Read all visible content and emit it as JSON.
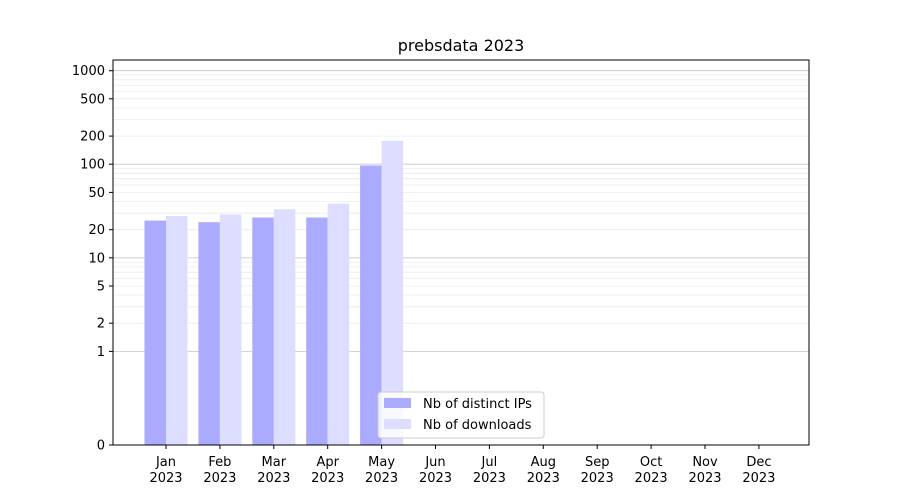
{
  "chart_data": {
    "type": "bar",
    "title": "prebsdata 2023",
    "xlabel": "",
    "ylabel": "",
    "y_scale": "symlog",
    "y_ticks": [
      0,
      1,
      2,
      5,
      10,
      20,
      50,
      100,
      200,
      500,
      1000
    ],
    "ylim": [
      0,
      1300
    ],
    "categories": [
      [
        "Jan",
        "2023"
      ],
      [
        "Feb",
        "2023"
      ],
      [
        "Mar",
        "2023"
      ],
      [
        "Apr",
        "2023"
      ],
      [
        "May",
        "2023"
      ],
      [
        "Jun",
        "2023"
      ],
      [
        "Jul",
        "2023"
      ],
      [
        "Aug",
        "2023"
      ],
      [
        "Sep",
        "2023"
      ],
      [
        "Oct",
        "2023"
      ],
      [
        "Nov",
        "2023"
      ],
      [
        "Dec",
        "2023"
      ]
    ],
    "series": [
      {
        "name": "Nb of distinct IPs",
        "color": "#aaaaff",
        "values": [
          25,
          24,
          27,
          27,
          97,
          null,
          null,
          null,
          null,
          null,
          null,
          null
        ]
      },
      {
        "name": "Nb of downloads",
        "color": "#ddddff",
        "values": [
          28,
          29,
          33,
          38,
          178,
          null,
          null,
          null,
          null,
          null,
          null,
          null
        ]
      }
    ],
    "grid": "horizontal",
    "legend_position": "bottom-center"
  }
}
